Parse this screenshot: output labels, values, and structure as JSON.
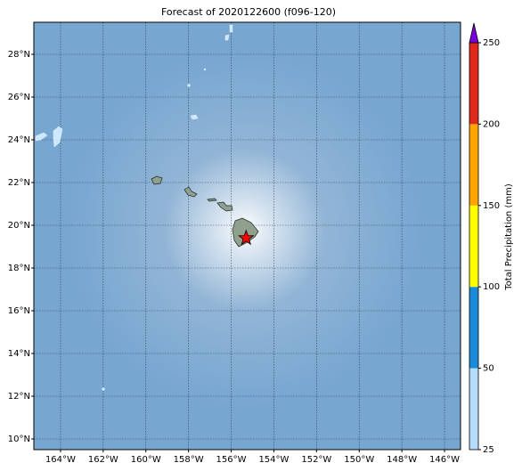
{
  "title": "Forecast of 2020122600 (f096-120)",
  "map": {
    "xlim": [
      -165.25,
      -145.25
    ],
    "ylim": [
      9.5,
      29.5
    ],
    "xticks": [
      {
        "value": -164,
        "label": "164°W"
      },
      {
        "value": -162,
        "label": "162°W"
      },
      {
        "value": -160,
        "label": "160°W"
      },
      {
        "value": -158,
        "label": "158°W"
      },
      {
        "value": -156,
        "label": "156°W"
      },
      {
        "value": -154,
        "label": "154°W"
      },
      {
        "value": -152,
        "label": "152°W"
      },
      {
        "value": -150,
        "label": "150°W"
      },
      {
        "value": -148,
        "label": "148°W"
      },
      {
        "value": -146,
        "label": "146°W"
      }
    ],
    "yticks": [
      {
        "value": 10,
        "label": "10°N"
      },
      {
        "value": 12,
        "label": "12°N"
      },
      {
        "value": 14,
        "label": "14°N"
      },
      {
        "value": 16,
        "label": "16°N"
      },
      {
        "value": 18,
        "label": "18°N"
      },
      {
        "value": 20,
        "label": "20°N"
      },
      {
        "value": 22,
        "label": "22°N"
      },
      {
        "value": 24,
        "label": "24°N"
      },
      {
        "value": 26,
        "label": "26°N"
      },
      {
        "value": 28,
        "label": "28°N"
      }
    ],
    "marker": {
      "lon": -155.3,
      "lat": 19.4,
      "color": "#ff0000"
    }
  },
  "colorbar": {
    "label": "Total Precipitation (mm)",
    "bounds": [
      25,
      50,
      100,
      150,
      200,
      250
    ],
    "colors": [
      "#b7dcfa",
      "#1a8ad9",
      "#ffff00",
      "#ffa500",
      "#e0281c"
    ],
    "extend_color": "#7a00e0"
  }
}
